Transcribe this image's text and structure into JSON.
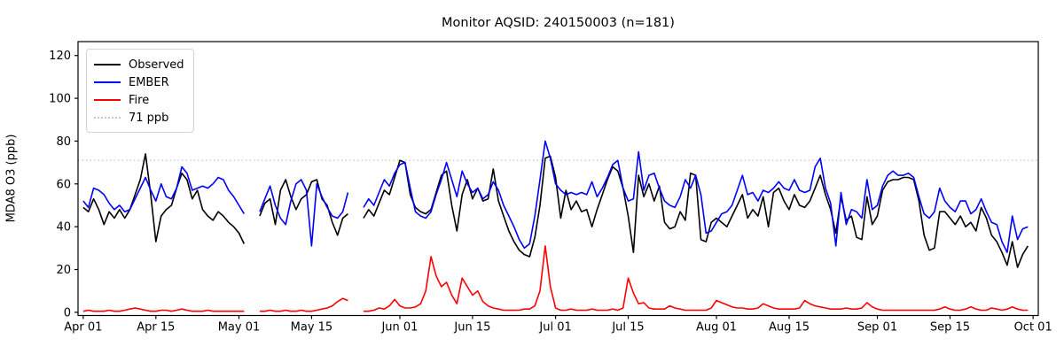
{
  "chart": {
    "title": "Monitor AQSID: 240150003 (n=181)",
    "ylabel": "MDA8 O3 (ppb)"
  },
  "legend": {
    "items": [
      {
        "label": "Observed",
        "color": "#000000",
        "style": "solid"
      },
      {
        "label": "EMBER",
        "color": "#0000ff",
        "style": "solid"
      },
      {
        "label": "Fire",
        "color": "#ff0000",
        "style": "solid"
      },
      {
        "label": "71 ppb",
        "color": "#c8c8c8",
        "style": "dotted"
      }
    ]
  },
  "chart_data": {
    "type": "line",
    "title": "Monitor AQSID: 240150003 (n=181)",
    "xlabel": "",
    "ylabel": "MDA8 O3 (ppb)",
    "x_unit": "days_since_Apr_01",
    "n_points_label": 181,
    "grid": false,
    "legend_position": "upper-left",
    "ylim": [
      -1.5,
      126.5
    ],
    "y_ticks": [
      0,
      20,
      40,
      60,
      80,
      100,
      120
    ],
    "x_ticks": [
      {
        "day": 0,
        "label": "Apr 01"
      },
      {
        "day": 14,
        "label": "Apr 15"
      },
      {
        "day": 30,
        "label": "May 01"
      },
      {
        "day": 44,
        "label": "May 15"
      },
      {
        "day": 61,
        "label": "Jun 01"
      },
      {
        "day": 75,
        "label": "Jun 15"
      },
      {
        "day": 91,
        "label": "Jul 01"
      },
      {
        "day": 105,
        "label": "Jul 15"
      },
      {
        "day": 122,
        "label": "Aug 01"
      },
      {
        "day": 136,
        "label": "Aug 15"
      },
      {
        "day": 153,
        "label": "Sep 01"
      },
      {
        "day": 167,
        "label": "Sep 15"
      },
      {
        "day": 183,
        "label": "Oct 01"
      }
    ],
    "threshold": {
      "value": 71,
      "label": "71 ppb",
      "color": "#c8c8c8",
      "style": "dotted"
    },
    "series": [
      {
        "name": "Observed",
        "color": "#000000",
        "values": [
          49,
          47,
          53,
          48,
          41,
          47,
          44,
          48,
          44,
          48,
          55,
          62,
          74,
          55,
          33,
          45,
          48,
          50,
          58,
          65,
          62,
          53,
          57,
          48,
          45,
          43,
          47,
          45,
          42,
          40,
          37,
          32,
          null,
          null,
          45,
          51,
          53,
          41,
          57,
          62,
          54,
          48,
          53,
          55,
          61,
          62,
          53,
          50,
          42,
          36,
          44,
          46,
          null,
          null,
          44,
          48,
          45,
          51,
          57,
          55,
          63,
          71,
          70,
          55,
          49,
          47,
          46,
          48,
          56,
          64,
          66,
          50,
          38,
          55,
          62,
          53,
          58,
          52,
          53,
          67,
          52,
          45,
          38,
          33,
          29,
          27,
          26,
          35,
          50,
          72,
          73,
          63,
          44,
          57,
          48,
          52,
          47,
          48,
          40,
          48,
          55,
          62,
          68,
          66,
          58,
          45,
          28,
          64,
          54,
          60,
          52,
          59,
          42,
          39,
          40,
          47,
          43,
          65,
          64,
          34,
          33,
          42,
          44,
          42,
          40,
          45,
          50,
          55,
          44,
          48,
          45,
          54,
          40,
          56,
          58,
          52,
          48,
          55,
          50,
          49,
          52,
          58,
          64,
          55,
          48,
          37,
          54,
          43,
          45,
          35,
          34,
          54,
          41,
          45,
          57,
          61,
          62,
          62,
          63,
          63,
          62,
          52,
          36,
          29,
          30,
          47,
          47,
          44,
          41,
          45,
          40,
          42,
          38,
          49,
          44,
          36,
          33,
          28,
          22,
          33,
          21,
          27,
          31
        ]
      },
      {
        "name": "EMBER",
        "color": "#0000ff",
        "values": [
          52,
          49,
          58,
          57,
          55,
          51,
          48,
          50,
          47,
          48,
          53,
          58,
          63,
          57,
          52,
          60,
          54,
          53,
          58,
          68,
          65,
          57,
          58,
          59,
          58,
          60,
          63,
          62,
          57,
          54,
          50,
          46,
          null,
          null,
          47,
          53,
          59,
          50,
          44,
          41,
          52,
          60,
          62,
          57,
          31,
          60,
          54,
          49,
          45,
          44,
          47,
          56,
          null,
          null,
          49,
          53,
          50,
          56,
          62,
          59,
          65,
          69,
          70,
          58,
          47,
          45,
          44,
          47,
          55,
          62,
          70,
          62,
          54,
          66,
          60,
          56,
          58,
          53,
          55,
          61,
          57,
          50,
          45,
          40,
          34,
          30,
          32,
          45,
          62,
          80,
          72,
          60,
          57,
          55,
          56,
          55,
          56,
          55,
          61,
          54,
          58,
          63,
          69,
          71,
          58,
          52,
          53,
          75,
          57,
          64,
          65,
          58,
          52,
          50,
          49,
          54,
          62,
          58,
          64,
          55,
          37,
          38,
          42,
          46,
          47,
          50,
          57,
          64,
          55,
          56,
          52,
          57,
          56,
          58,
          61,
          58,
          57,
          62,
          57,
          56,
          57,
          68,
          72,
          58,
          51,
          31,
          56,
          41,
          48,
          47,
          44,
          62,
          48,
          50,
          59,
          64,
          66,
          64,
          64,
          65,
          63,
          54,
          46,
          44,
          47,
          58,
          52,
          49,
          47,
          52,
          52,
          46,
          48,
          53,
          47,
          42,
          41,
          33,
          28,
          45,
          34,
          39,
          40
        ]
      },
      {
        "name": "Fire",
        "color": "#ff0000",
        "values": [
          0.5,
          1,
          0.5,
          0.5,
          0.5,
          1,
          0.5,
          0.5,
          1,
          1.5,
          2,
          1.5,
          1,
          0.5,
          0.5,
          1,
          1,
          0.5,
          1,
          1.5,
          1,
          0.5,
          0.5,
          0.5,
          1,
          0.5,
          0.5,
          0.5,
          0.5,
          0.5,
          0.5,
          0.5,
          null,
          null,
          0.5,
          0.5,
          1,
          0.5,
          0.5,
          1,
          0.5,
          0.5,
          1,
          0.5,
          0.5,
          1,
          1.5,
          2,
          3,
          5,
          6.5,
          5.5,
          null,
          null,
          0.5,
          0.5,
          1,
          2,
          1.5,
          3,
          6,
          3,
          2,
          2,
          2.5,
          4,
          10,
          26,
          17,
          12,
          14,
          8,
          4,
          16,
          12,
          8,
          10,
          5,
          3,
          2,
          1.5,
          1,
          1,
          1,
          1,
          1.5,
          1.5,
          3,
          10,
          31,
          12,
          2,
          1,
          1,
          1.5,
          1,
          1,
          1,
          1.5,
          1,
          1,
          1,
          1.5,
          1,
          2,
          16,
          9,
          4,
          4.5,
          2,
          1.5,
          1.5,
          1.5,
          3,
          2,
          1.5,
          1,
          1,
          1,
          1,
          1,
          2,
          5.5,
          4.5,
          3.5,
          2.5,
          2,
          2,
          1.5,
          1.5,
          2,
          4,
          3,
          2,
          1.5,
          1.5,
          1.5,
          1.5,
          2,
          5.5,
          4,
          3,
          2.5,
          2,
          1.5,
          1.5,
          1.5,
          2,
          1.5,
          1.5,
          2,
          4.5,
          2.5,
          1.5,
          1,
          1,
          1,
          1,
          1,
          1,
          1,
          1,
          1,
          1,
          1,
          1.5,
          2.5,
          1.5,
          1,
          1,
          1.5,
          2.5,
          1.5,
          1,
          1,
          2,
          1.5,
          1,
          1.5,
          2.5,
          1.5,
          1,
          1
        ]
      }
    ]
  }
}
